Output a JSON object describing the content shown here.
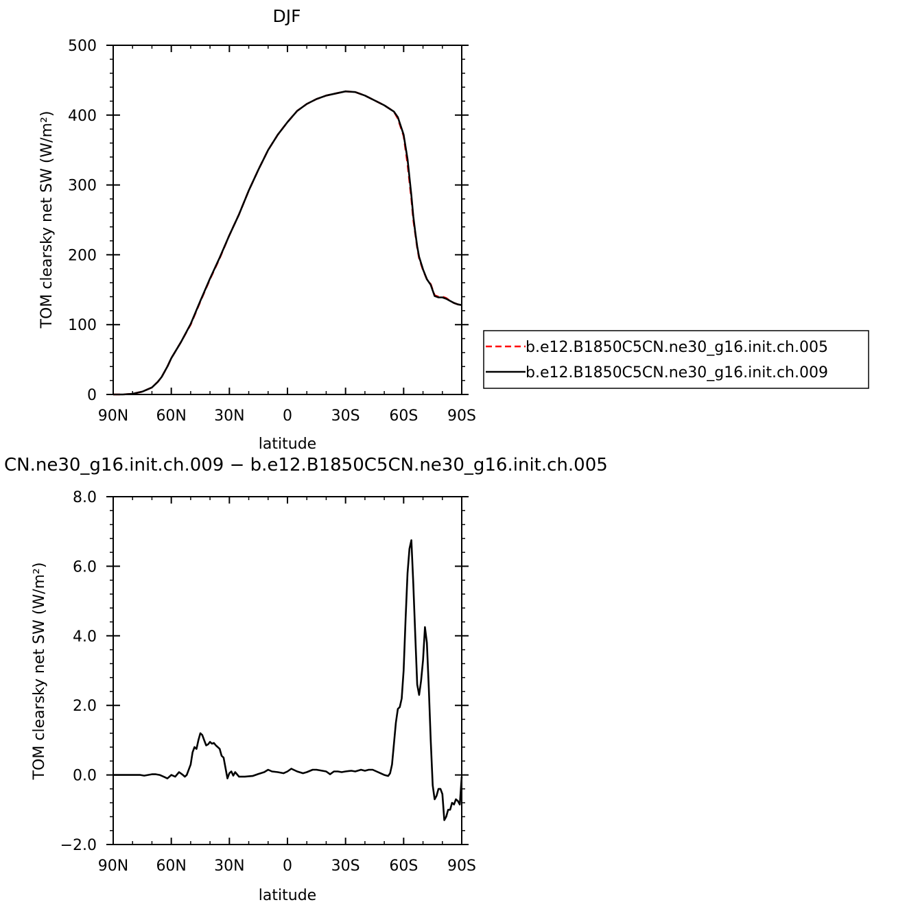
{
  "colors": {
    "run_005": "#ff0000",
    "run_009": "#000000",
    "axis": "#000000"
  },
  "chart_data": [
    {
      "type": "line",
      "title": "DJF",
      "xlabel": "latitude",
      "ylabel": "TOM clearsky net SW (W/m²)",
      "xlim": [
        90,
        -90
      ],
      "ylim": [
        0,
        500
      ],
      "xticks": [
        {
          "value": 90,
          "label": "90N"
        },
        {
          "value": 60,
          "label": "60N"
        },
        {
          "value": 30,
          "label": "30N"
        },
        {
          "value": 0,
          "label": "0"
        },
        {
          "value": -30,
          "label": "30S"
        },
        {
          "value": -60,
          "label": "60S"
        },
        {
          "value": -90,
          "label": "90S"
        }
      ],
      "yticks": [
        {
          "value": 0,
          "label": "0"
        },
        {
          "value": 100,
          "label": "100"
        },
        {
          "value": 200,
          "label": "200"
        },
        {
          "value": 300,
          "label": "300"
        },
        {
          "value": 400,
          "label": "400"
        },
        {
          "value": 500,
          "label": "500"
        }
      ],
      "legend": {
        "placement": "right"
      },
      "series": [
        {
          "name": "b.e12.B1850C5CN.ne30_g16.init.ch.005",
          "style": "dashed",
          "color": "#ff0000",
          "x": [
            90,
            85,
            80,
            75,
            70,
            67,
            65,
            62,
            60,
            55,
            50,
            45,
            40,
            35,
            30,
            25,
            20,
            15,
            10,
            5,
            0,
            -5,
            -10,
            -15,
            -20,
            -25,
            -30,
            -35,
            -40,
            -45,
            -50,
            -55,
            -57,
            -60,
            -62,
            -64,
            -65,
            -66,
            -67,
            -68,
            -70,
            -72,
            -74,
            -76,
            -78,
            -80,
            -82,
            -84,
            -86,
            -88,
            -90
          ],
          "y": [
            0,
            0,
            1,
            4,
            10,
            18,
            25,
            40,
            52,
            75,
            100,
            133,
            165,
            195,
            228,
            258,
            292,
            322,
            350,
            372,
            390,
            406,
            416,
            423,
            428,
            431,
            434,
            433,
            428,
            421,
            414,
            405,
            395,
            370,
            330,
            280,
            250,
            230,
            210,
            195,
            178,
            165,
            158,
            142,
            140,
            140,
            138,
            134,
            131,
            129,
            128
          ]
        },
        {
          "name": "b.e12.B1850C5CN.ne30_g16.init.ch.009",
          "style": "solid",
          "color": "#000000",
          "x": [
            90,
            85,
            80,
            75,
            70,
            67,
            65,
            62,
            60,
            55,
            50,
            45,
            40,
            35,
            30,
            25,
            20,
            15,
            10,
            5,
            0,
            -5,
            -10,
            -15,
            -20,
            -25,
            -30,
            -35,
            -40,
            -45,
            -50,
            -55,
            -57,
            -60,
            -62,
            -64,
            -65,
            -66,
            -67,
            -68,
            -70,
            -72,
            -74,
            -76,
            -78,
            -80,
            -82,
            -84,
            -86,
            -88,
            -90
          ],
          "y": [
            0,
            0,
            1,
            4,
            10,
            18,
            25,
            40,
            52,
            75,
            101,
            134,
            166,
            196,
            228,
            258,
            292,
            322,
            350,
            372,
            390,
            406,
            416,
            423,
            428,
            431,
            434,
            433,
            428,
            421,
            414,
            405,
            397,
            372,
            337,
            285,
            255,
            232,
            212,
            197,
            179,
            165,
            157,
            141,
            139,
            139,
            137,
            134,
            131,
            129,
            128
          ]
        }
      ]
    },
    {
      "type": "line",
      "title": "CN.ne30_g16.init.ch.009 − b.e12.B1850C5CN.ne30_g16.init.ch.005",
      "xlabel": "latitude",
      "ylabel": "TOM clearsky net SW (W/m²)",
      "xlim": [
        90,
        -90
      ],
      "ylim": [
        -2,
        8
      ],
      "xticks": [
        {
          "value": 90,
          "label": "90N"
        },
        {
          "value": 60,
          "label": "60N"
        },
        {
          "value": 30,
          "label": "30N"
        },
        {
          "value": 0,
          "label": "0"
        },
        {
          "value": -30,
          "label": "30S"
        },
        {
          "value": -60,
          "label": "60S"
        },
        {
          "value": -90,
          "label": "90S"
        }
      ],
      "yticks": [
        {
          "value": -2,
          "label": "−2.0"
        },
        {
          "value": 0,
          "label": "0.0"
        },
        {
          "value": 2,
          "label": "2.0"
        },
        {
          "value": 4,
          "label": "4.0"
        },
        {
          "value": 6,
          "label": "6.0"
        },
        {
          "value": 8,
          "label": "8.0"
        }
      ],
      "series": [
        {
          "style": "solid",
          "color": "#000000",
          "x": [
            90,
            85,
            76,
            74,
            72,
            70,
            68,
            66,
            64,
            62,
            60,
            58,
            56,
            54,
            53,
            52,
            50,
            49,
            48,
            47,
            46,
            45,
            44,
            43,
            42,
            41,
            40,
            39,
            38,
            37,
            36,
            35,
            34,
            33,
            32,
            31,
            30,
            29,
            28,
            27,
            25,
            22,
            18,
            15,
            12,
            10,
            8,
            5,
            2,
            0,
            -2,
            -5,
            -8,
            -10,
            -13,
            -15,
            -18,
            -20,
            -22,
            -24,
            -26,
            -28,
            -30,
            -33,
            -35,
            -38,
            -40,
            -42,
            -44,
            -46,
            -48,
            -50,
            -52,
            -53,
            -54,
            -55,
            -56,
            -57,
            -58,
            -59,
            -60,
            -61,
            -62,
            -63,
            -64,
            -65,
            -66,
            -67,
            -68,
            -69,
            -70,
            -71,
            -72,
            -73,
            -74,
            -75,
            -76,
            -77,
            -78,
            -79,
            -80,
            -81,
            -82,
            -83,
            -84,
            -85,
            -86,
            -87,
            -88,
            -89,
            -90
          ],
          "y": [
            0,
            0,
            0,
            -0.02,
            0,
            0.02,
            0.02,
            0,
            -0.05,
            -0.1,
            0,
            -0.05,
            0.08,
            0,
            -0.05,
            0,
            0.3,
            0.65,
            0.8,
            0.75,
            1.0,
            1.2,
            1.15,
            1.0,
            0.85,
            0.88,
            0.95,
            0.9,
            0.92,
            0.85,
            0.8,
            0.75,
            0.55,
            0.5,
            0.2,
            -0.1,
            0.05,
            0.1,
            -0.02,
            0.08,
            -0.05,
            -0.05,
            -0.03,
            0.03,
            0.08,
            0.15,
            0.1,
            0.08,
            0.05,
            0.1,
            0.18,
            0.1,
            0.05,
            0.08,
            0.15,
            0.15,
            0.12,
            0.1,
            0.02,
            0.1,
            0.1,
            0.08,
            0.1,
            0.12,
            0.1,
            0.15,
            0.12,
            0.15,
            0.15,
            0.1,
            0.05,
            0,
            -0.03,
            0.05,
            0.3,
            0.9,
            1.5,
            1.9,
            1.95,
            2.2,
            3.0,
            4.5,
            5.8,
            6.5,
            6.75,
            5.5,
            4.0,
            2.6,
            2.3,
            2.7,
            3.3,
            4.25,
            3.8,
            2.5,
            1.0,
            -0.3,
            -0.7,
            -0.6,
            -0.4,
            -0.4,
            -0.55,
            -1.3,
            -1.2,
            -1.0,
            -1.0,
            -0.8,
            -0.85,
            -0.7,
            -0.75,
            -0.85,
            -0.05
          ]
        }
      ]
    }
  ]
}
